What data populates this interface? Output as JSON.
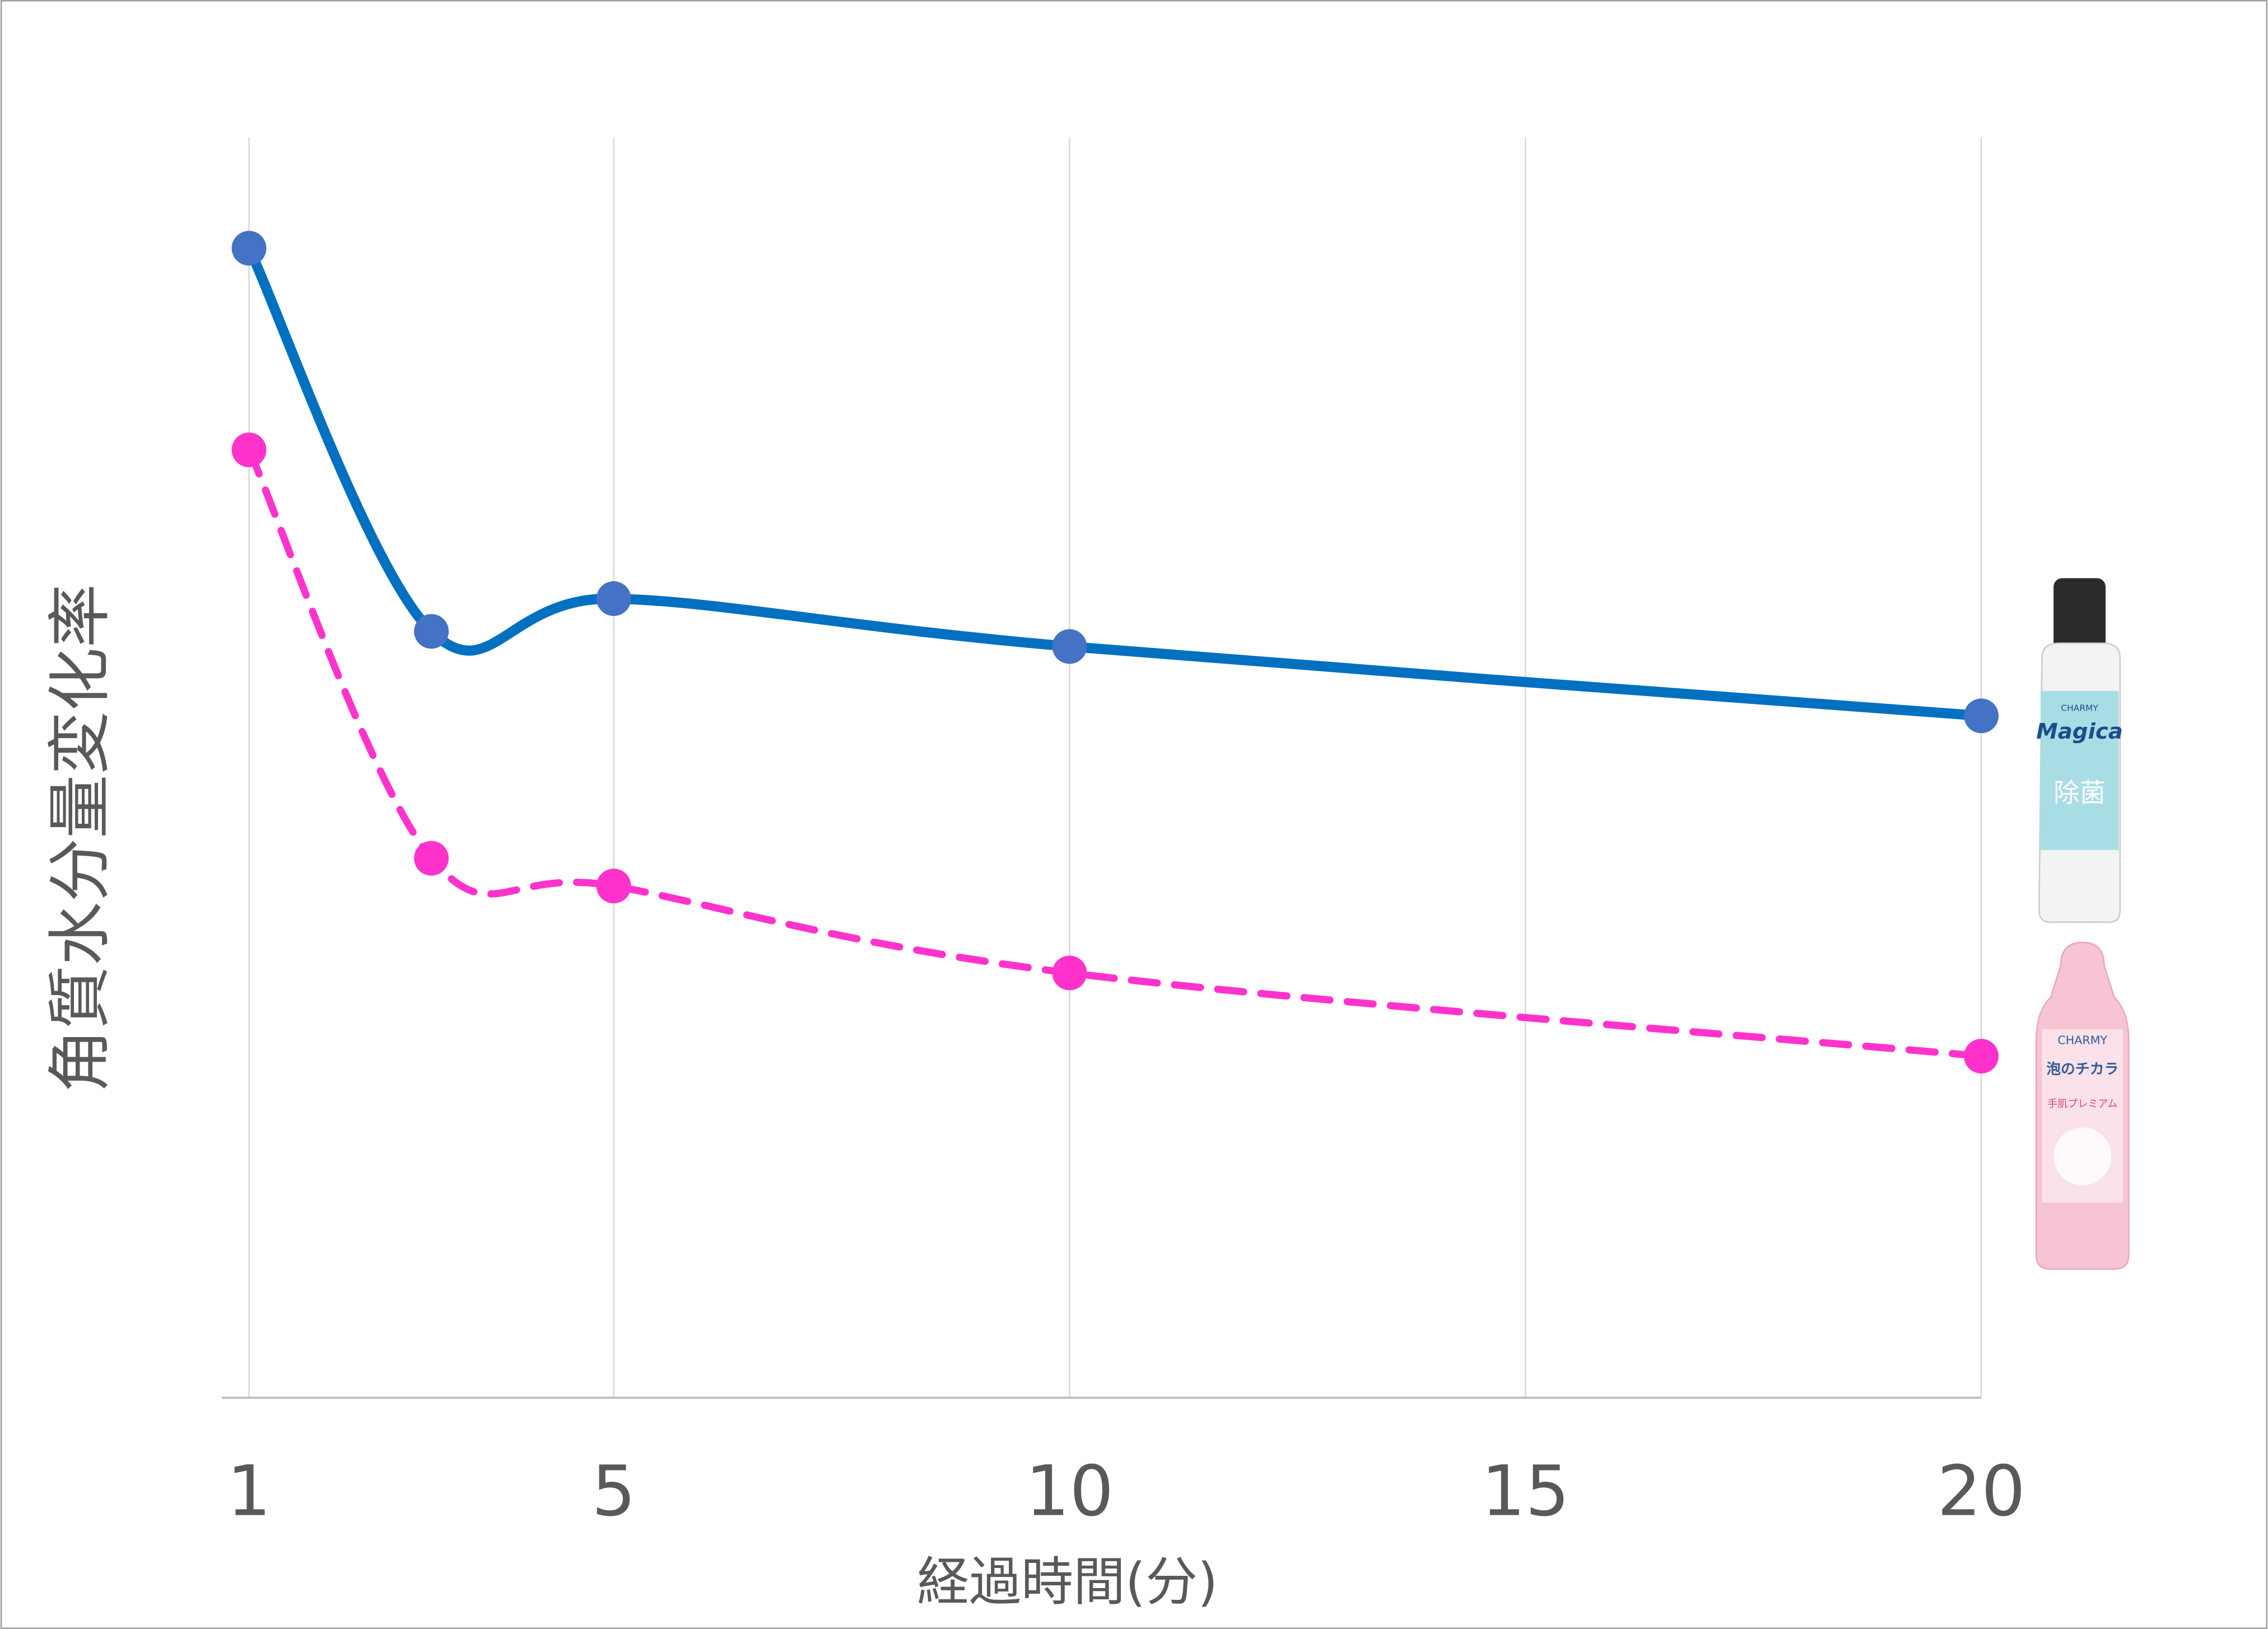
{
  "chart_data": {
    "type": "line",
    "x_label": "経過時間(分)",
    "y_label": "角質水分量変化率",
    "x": [
      1,
      3,
      5,
      10,
      20
    ],
    "series": [
      {
        "color": "#0070c0",
        "marker_color": "#4472c4",
        "dashed": false,
        "values": [
          91.2,
          60.8,
          63.4,
          59.6,
          54.1
        ]
      },
      {
        "color": "#ff33cc",
        "marker_color": "#ff33cc",
        "dashed": true,
        "values": [
          75.2,
          42.8,
          40.6,
          33.7,
          27.1
        ]
      }
    ],
    "xlim": [
      0.7,
      20
    ],
    "ylim": [
      0,
      100
    ],
    "xticks": [
      1,
      5,
      10,
      15,
      20
    ],
    "grid": true,
    "product_labels": [
      [
        "CHARMY",
        "Magica",
        "除菌"
      ],
      [
        "CHARMY",
        "泡のチカラ",
        "手肌プレミアム"
      ]
    ]
  }
}
